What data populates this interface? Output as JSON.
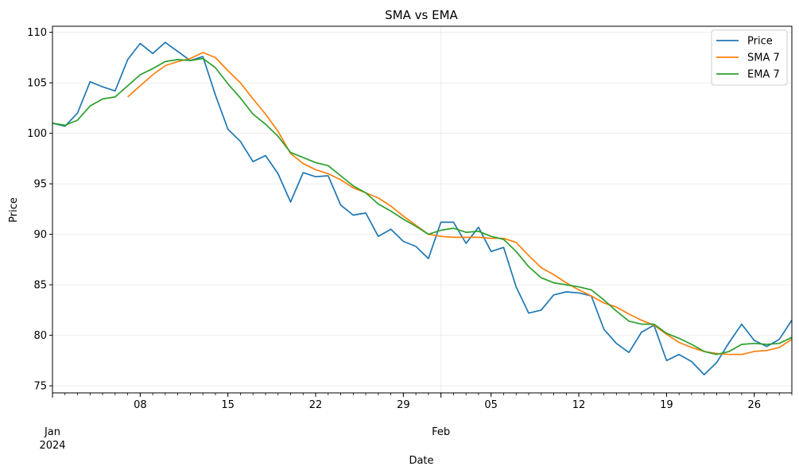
{
  "chart_data": {
    "type": "line",
    "title": "SMA vs EMA",
    "xlabel": "Date",
    "ylabel": "Price",
    "ylim": [
      74.3,
      110.6
    ],
    "xlim_days": [
      0,
      59
    ],
    "grid": true,
    "legend_position": "top-right",
    "x_ticks": [
      {
        "day": 7,
        "label": "08",
        "sub": ""
      },
      {
        "day": 14,
        "label": "15",
        "sub": ""
      },
      {
        "day": 21,
        "label": "22",
        "sub": ""
      },
      {
        "day": 28,
        "label": "29",
        "sub": ""
      },
      {
        "day": 35,
        "label": "05",
        "sub": ""
      },
      {
        "day": 42,
        "label": "12",
        "sub": ""
      },
      {
        "day": 49,
        "label": "19",
        "sub": ""
      },
      {
        "day": 56,
        "label": "26",
        "sub": ""
      }
    ],
    "month_ticks": [
      {
        "day": 0,
        "label": "Jan",
        "sub": "2024"
      },
      {
        "day": 31,
        "label": "Feb",
        "sub": ""
      }
    ],
    "y_ticks": [
      75,
      80,
      85,
      90,
      95,
      100,
      105,
      110
    ],
    "series": [
      {
        "name": "Price",
        "color": "#1f77b4",
        "start_day": 0,
        "values": [
          101.0,
          100.7,
          102.0,
          105.1,
          104.6,
          104.2,
          107.3,
          108.9,
          107.9,
          109.0,
          108.1,
          107.2,
          107.6,
          103.8,
          100.4,
          99.2,
          97.2,
          97.8,
          96.0,
          93.2,
          96.1,
          95.7,
          95.8,
          92.9,
          91.9,
          92.1,
          89.8,
          90.5,
          89.3,
          88.8,
          87.6,
          91.2,
          91.2,
          89.1,
          90.7,
          88.3,
          88.7,
          84.8,
          82.2,
          82.5,
          84.0,
          84.3,
          84.2,
          83.9,
          80.6,
          79.2,
          78.3,
          80.3,
          81.0,
          77.5,
          78.1,
          77.4,
          76.1,
          77.3,
          79.3,
          81.1,
          79.5,
          78.9,
          79.6,
          81.5
        ]
      },
      {
        "name": "SMA 7",
        "color": "#ff7f0e",
        "start_day": 6,
        "values": [
          103.6,
          104.7,
          105.8,
          106.7,
          107.1,
          107.4,
          108.0,
          107.5,
          106.2,
          105.0,
          103.4,
          101.9,
          100.2,
          98.0,
          97.0,
          96.4,
          96.0,
          95.4,
          94.6,
          94.1,
          93.6,
          92.8,
          91.8,
          90.9,
          90.0,
          89.8,
          89.7,
          89.7,
          89.7,
          89.6,
          89.6,
          89.2,
          87.9,
          86.7,
          86.0,
          85.2,
          84.5,
          83.9,
          83.2,
          82.8,
          82.1,
          81.5,
          81.0,
          80.1,
          79.3,
          78.8,
          78.4,
          78.2,
          78.1,
          78.1,
          78.4,
          78.5,
          78.8,
          79.6
        ]
      },
      {
        "name": "EMA 7",
        "color": "#2ca02c",
        "start_day": 0,
        "values": [
          101.0,
          100.8,
          101.3,
          102.7,
          103.4,
          103.6,
          104.7,
          105.8,
          106.4,
          107.1,
          107.3,
          107.2,
          107.4,
          106.5,
          104.9,
          103.5,
          101.9,
          100.9,
          99.7,
          98.1,
          97.6,
          97.1,
          96.8,
          95.8,
          94.8,
          94.1,
          93.0,
          92.3,
          91.5,
          90.8,
          90.0,
          90.4,
          90.6,
          90.2,
          90.3,
          89.8,
          89.5,
          88.3,
          86.8,
          85.7,
          85.2,
          85.0,
          84.8,
          84.5,
          83.5,
          82.4,
          81.4,
          81.1,
          81.1,
          80.2,
          79.7,
          79.1,
          78.4,
          78.1,
          78.4,
          79.1,
          79.2,
          79.1,
          79.2,
          79.8
        ]
      }
    ]
  }
}
